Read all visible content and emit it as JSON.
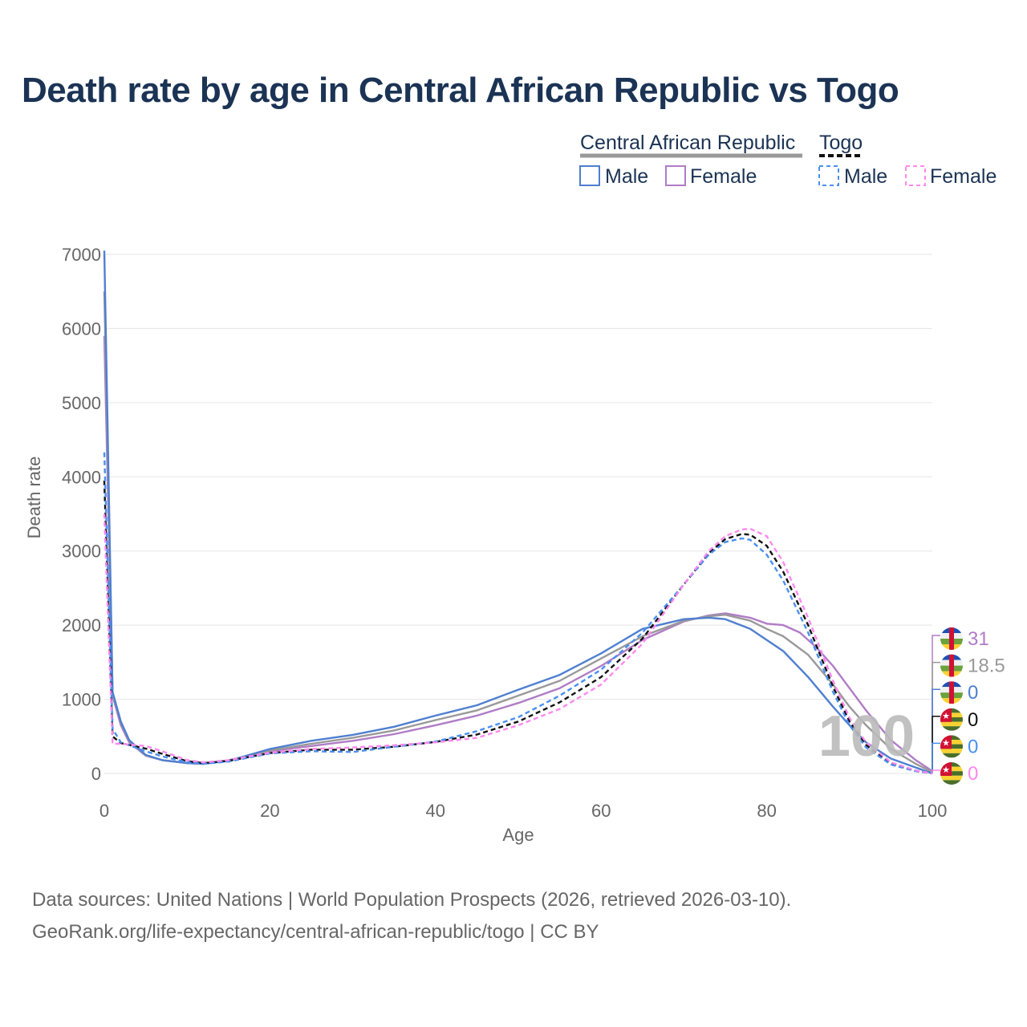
{
  "title": "Death rate by age in Central African Republic vs Togo",
  "sources": [
    "Data sources: United Nations | World Population Prospects (2026, retrieved 2026-03-10).",
    "GeoRank.org/life-expectancy/central-african-republic/togo | CC BY"
  ],
  "legend": {
    "group1": "Central African Republic",
    "group2": "Togo",
    "male": "Male",
    "female": "Female"
  },
  "watermark": "100",
  "chart_data": {
    "type": "line",
    "title": "Death rate by age in Central African Republic vs Togo",
    "xlabel": "Age",
    "ylabel": "Death rate",
    "xlim": [
      0,
      100
    ],
    "ylim": [
      0,
      7000
    ],
    "xticks": [
      0,
      20,
      40,
      60,
      80,
      100
    ],
    "yticks": [
      0,
      1000,
      2000,
      3000,
      4000,
      5000,
      6000,
      7000
    ],
    "grid": true,
    "legend_position": "top-right",
    "series": [
      {
        "name": "Central African Republic Female",
        "color": "#b07cc6",
        "dash": false,
        "end_label": "31",
        "points": [
          [
            0,
            5900
          ],
          [
            1,
            1050
          ],
          [
            2,
            650
          ],
          [
            3,
            420
          ],
          [
            5,
            240
          ],
          [
            7,
            180
          ],
          [
            10,
            140
          ],
          [
            12,
            130
          ],
          [
            15,
            180
          ],
          [
            20,
            300
          ],
          [
            25,
            370
          ],
          [
            30,
            440
          ],
          [
            35,
            530
          ],
          [
            40,
            650
          ],
          [
            45,
            780
          ],
          [
            50,
            950
          ],
          [
            55,
            1150
          ],
          [
            60,
            1450
          ],
          [
            65,
            1800
          ],
          [
            70,
            2050
          ],
          [
            73,
            2130
          ],
          [
            75,
            2160
          ],
          [
            78,
            2100
          ],
          [
            80,
            2020
          ],
          [
            82,
            2000
          ],
          [
            84,
            1900
          ],
          [
            86,
            1700
          ],
          [
            88,
            1450
          ],
          [
            90,
            1150
          ],
          [
            92,
            850
          ],
          [
            95,
            450
          ],
          [
            98,
            180
          ],
          [
            100,
            31
          ]
        ]
      },
      {
        "name": "Central African Republic",
        "color": "#999999",
        "dash": false,
        "end_label": "18.5",
        "points": [
          [
            0,
            6500
          ],
          [
            1,
            1080
          ],
          [
            2,
            680
          ],
          [
            3,
            440
          ],
          [
            5,
            245
          ],
          [
            7,
            180
          ],
          [
            10,
            140
          ],
          [
            12,
            130
          ],
          [
            15,
            175
          ],
          [
            20,
            310
          ],
          [
            25,
            400
          ],
          [
            30,
            480
          ],
          [
            35,
            580
          ],
          [
            40,
            720
          ],
          [
            45,
            850
          ],
          [
            50,
            1050
          ],
          [
            55,
            1250
          ],
          [
            60,
            1550
          ],
          [
            65,
            1850
          ],
          [
            70,
            2060
          ],
          [
            73,
            2120
          ],
          [
            75,
            2140
          ],
          [
            78,
            2060
          ],
          [
            80,
            1950
          ],
          [
            82,
            1850
          ],
          [
            85,
            1600
          ],
          [
            88,
            1200
          ],
          [
            90,
            900
          ],
          [
            92,
            650
          ],
          [
            95,
            330
          ],
          [
            98,
            130
          ],
          [
            100,
            18.5
          ]
        ]
      },
      {
        "name": "Central African Republic Male",
        "color": "#4f7fd0",
        "dash": false,
        "end_label": "0",
        "points": [
          [
            0,
            7050
          ],
          [
            1,
            1100
          ],
          [
            2,
            700
          ],
          [
            3,
            450
          ],
          [
            5,
            250
          ],
          [
            7,
            180
          ],
          [
            10,
            140
          ],
          [
            12,
            130
          ],
          [
            15,
            170
          ],
          [
            20,
            330
          ],
          [
            25,
            440
          ],
          [
            30,
            520
          ],
          [
            35,
            630
          ],
          [
            40,
            780
          ],
          [
            45,
            920
          ],
          [
            50,
            1130
          ],
          [
            55,
            1330
          ],
          [
            60,
            1620
          ],
          [
            65,
            1950
          ],
          [
            70,
            2080
          ],
          [
            73,
            2100
          ],
          [
            75,
            2080
          ],
          [
            78,
            1950
          ],
          [
            80,
            1800
          ],
          [
            82,
            1650
          ],
          [
            85,
            1300
          ],
          [
            88,
            900
          ],
          [
            90,
            650
          ],
          [
            92,
            420
          ],
          [
            95,
            200
          ],
          [
            98,
            80
          ],
          [
            100,
            0
          ]
        ]
      },
      {
        "name": "Togo",
        "color": "#111111",
        "dash": true,
        "end_label": "0",
        "points": [
          [
            0,
            3950
          ],
          [
            1,
            500
          ],
          [
            2,
            410
          ],
          [
            3,
            385
          ],
          [
            5,
            335
          ],
          [
            7,
            265
          ],
          [
            10,
            165
          ],
          [
            12,
            140
          ],
          [
            15,
            170
          ],
          [
            20,
            275
          ],
          [
            25,
            320
          ],
          [
            30,
            320
          ],
          [
            35,
            360
          ],
          [
            40,
            425
          ],
          [
            45,
            525
          ],
          [
            50,
            700
          ],
          [
            55,
            960
          ],
          [
            60,
            1300
          ],
          [
            65,
            1820
          ],
          [
            70,
            2550
          ],
          [
            73,
            2970
          ],
          [
            75,
            3160
          ],
          [
            77,
            3230
          ],
          [
            78,
            3220
          ],
          [
            80,
            3070
          ],
          [
            82,
            2720
          ],
          [
            85,
            2000
          ],
          [
            88,
            1170
          ],
          [
            90,
            700
          ],
          [
            92,
            385
          ],
          [
            95,
            135
          ],
          [
            98,
            35
          ],
          [
            100,
            0
          ]
        ]
      },
      {
        "name": "Togo Male",
        "color": "#4a8ff0",
        "dash": true,
        "end_label": "0",
        "points": [
          [
            0,
            4330
          ],
          [
            1,
            600
          ],
          [
            2,
            420
          ],
          [
            3,
            380
          ],
          [
            5,
            300
          ],
          [
            7,
            230
          ],
          [
            10,
            150
          ],
          [
            12,
            130
          ],
          [
            15,
            160
          ],
          [
            20,
            270
          ],
          [
            25,
            300
          ],
          [
            30,
            290
          ],
          [
            35,
            360
          ],
          [
            40,
            430
          ],
          [
            45,
            570
          ],
          [
            50,
            760
          ],
          [
            55,
            1050
          ],
          [
            60,
            1400
          ],
          [
            65,
            1900
          ],
          [
            70,
            2550
          ],
          [
            73,
            2950
          ],
          [
            75,
            3120
          ],
          [
            77,
            3170
          ],
          [
            78,
            3150
          ],
          [
            80,
            2950
          ],
          [
            82,
            2600
          ],
          [
            85,
            1900
          ],
          [
            88,
            1100
          ],
          [
            90,
            650
          ],
          [
            92,
            350
          ],
          [
            95,
            120
          ],
          [
            98,
            30
          ],
          [
            100,
            0
          ]
        ]
      },
      {
        "name": "Togo Female",
        "color": "#ff88ee",
        "dash": true,
        "end_label": "0",
        "points": [
          [
            0,
            3500
          ],
          [
            1,
            400
          ],
          [
            2,
            400
          ],
          [
            3,
            390
          ],
          [
            5,
            370
          ],
          [
            7,
            300
          ],
          [
            10,
            180
          ],
          [
            12,
            150
          ],
          [
            15,
            180
          ],
          [
            20,
            280
          ],
          [
            25,
            330
          ],
          [
            30,
            350
          ],
          [
            35,
            380
          ],
          [
            40,
            420
          ],
          [
            45,
            480
          ],
          [
            50,
            650
          ],
          [
            55,
            870
          ],
          [
            60,
            1200
          ],
          [
            65,
            1750
          ],
          [
            70,
            2550
          ],
          [
            73,
            3000
          ],
          [
            75,
            3200
          ],
          [
            77,
            3290
          ],
          [
            78,
            3300
          ],
          [
            80,
            3200
          ],
          [
            82,
            2850
          ],
          [
            85,
            2100
          ],
          [
            88,
            1250
          ],
          [
            90,
            750
          ],
          [
            92,
            420
          ],
          [
            95,
            150
          ],
          [
            98,
            40
          ],
          [
            100,
            0
          ]
        ]
      }
    ]
  }
}
